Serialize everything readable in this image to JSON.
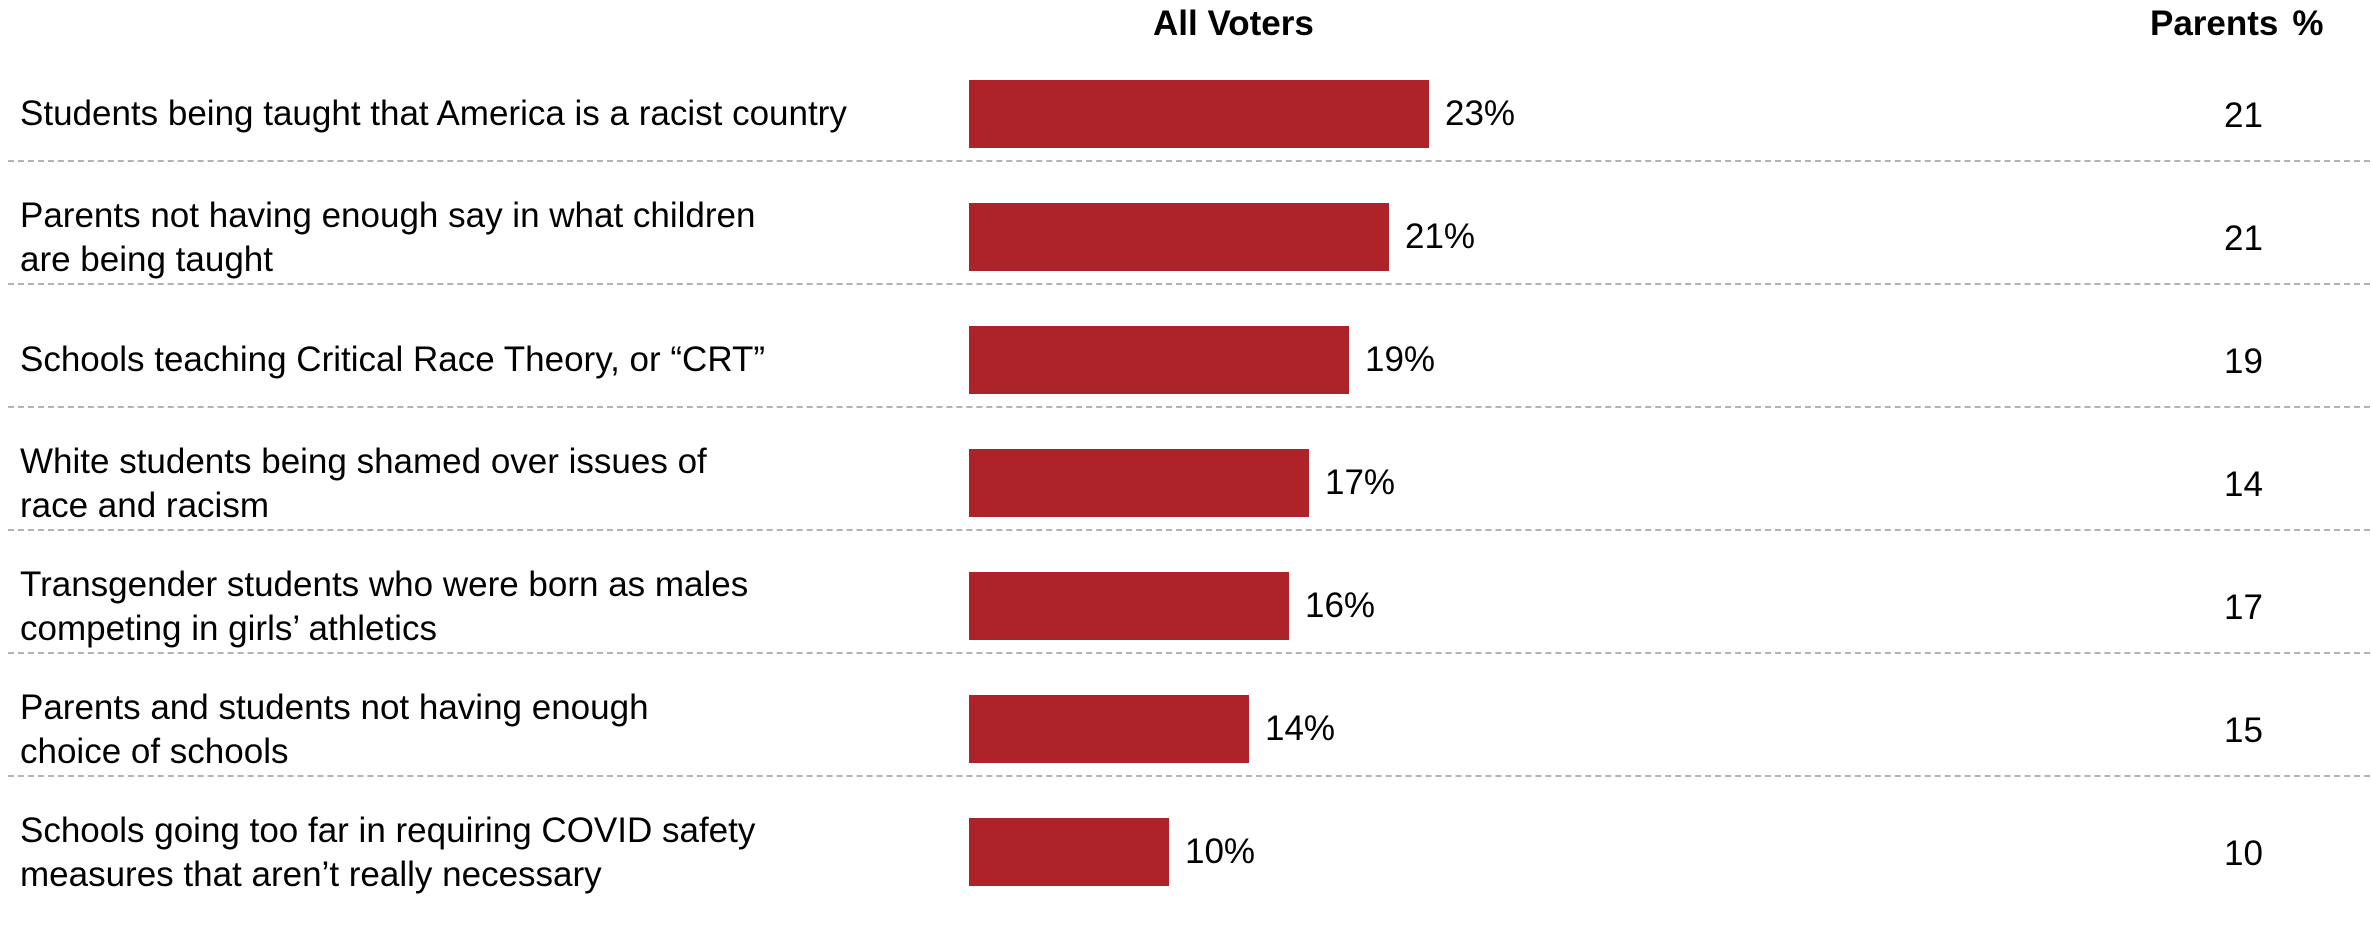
{
  "headers": {
    "all_voters": "All Voters",
    "parents": "Parents",
    "parents_unit": "%"
  },
  "colors": {
    "bar": "#ae232a"
  },
  "chart_data": {
    "type": "bar",
    "orientation": "horizontal",
    "categories": [
      "Students being taught that America is a racist country",
      "Parents not having enough say in what children\nare being taught",
      "Schools teaching Critical Race Theory, or “CRT”",
      "White students being shamed over issues of\nrace and racism",
      "Transgender students who were born as males\ncompeting in girls’ athletics",
      "Parents and students not having enough\nchoice of schools",
      "Schools going too far in requiring COVID safety\nmeasures that aren’t really necessary"
    ],
    "series": [
      {
        "name": "All Voters",
        "values": [
          23,
          21,
          19,
          17,
          16,
          14,
          10
        ],
        "labels": [
          "23%",
          "21%",
          "19%",
          "17%",
          "16%",
          "14%",
          "10%"
        ]
      },
      {
        "name": "Parents",
        "values": [
          21,
          21,
          19,
          14,
          17,
          15,
          10
        ],
        "labels": [
          "21",
          "21",
          "19",
          "14",
          "17",
          "15",
          "10"
        ]
      }
    ],
    "xlim": [
      0,
      100
    ],
    "grid": false
  }
}
